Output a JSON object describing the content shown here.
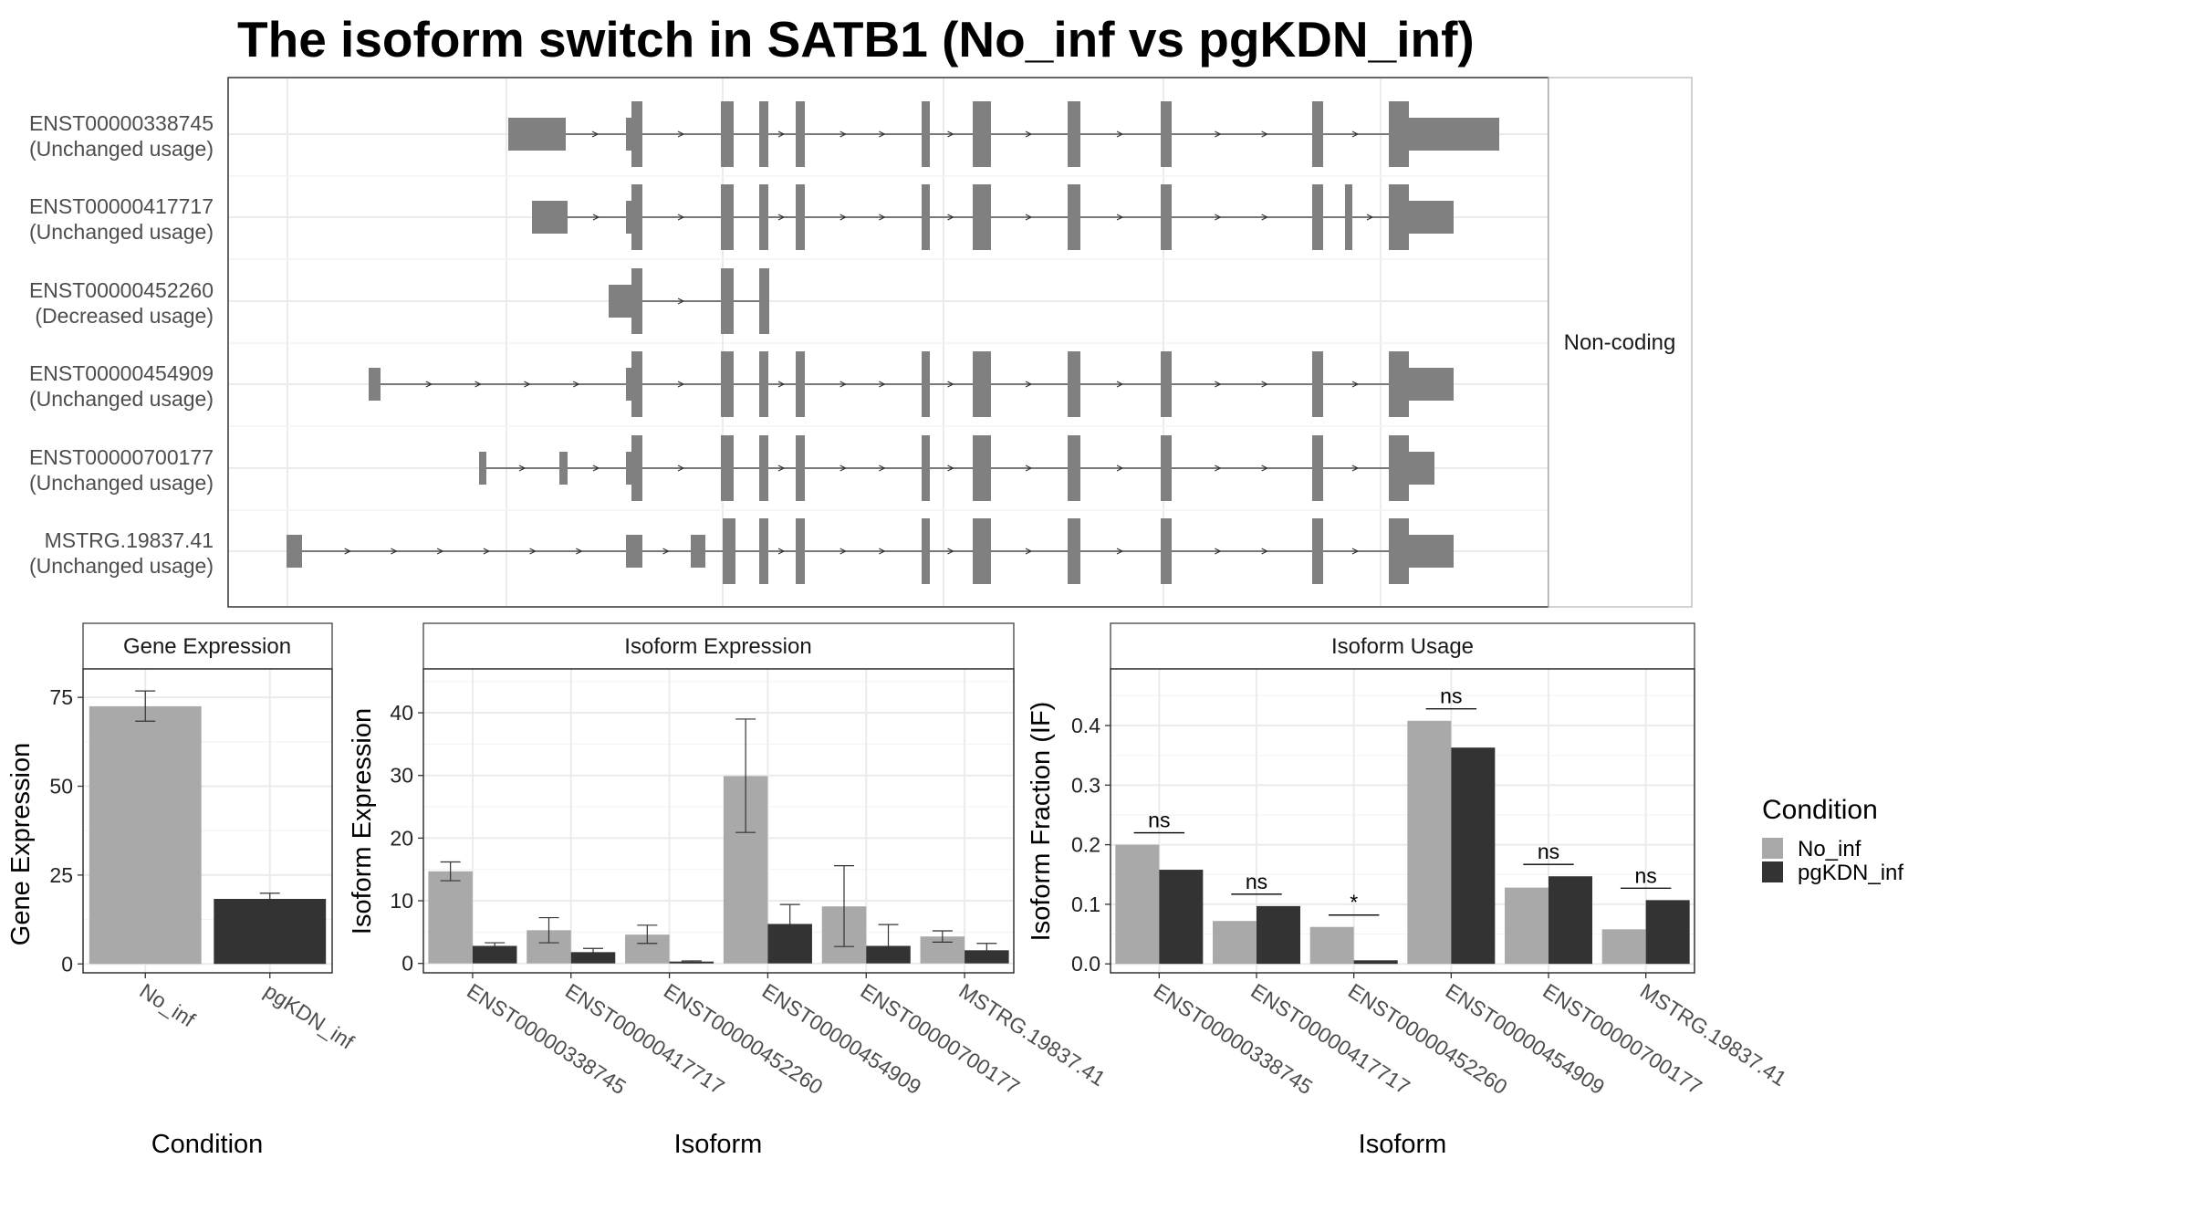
{
  "title": "The isoform switch in SATB1 (No_inf vs pgKDN_inf)",
  "colors": {
    "No_inf": "#a9a9a9",
    "pgKDN_inf": "#333333",
    "exon": "#808080",
    "grid": "#ebebeb",
    "strip_bg": "#ffffff"
  },
  "structure_panel": {
    "side_label": "Non-coding",
    "isoforms": [
      {
        "id": "ENST00000338745",
        "usage": "(Unchanged usage)"
      },
      {
        "id": "ENST00000417717",
        "usage": "(Unchanged usage)"
      },
      {
        "id": "ENST00000452260",
        "usage": "(Decreased usage)"
      },
      {
        "id": "ENST00000454909",
        "usage": "(Unchanged usage)"
      },
      {
        "id": "ENST00000700177",
        "usage": "(Unchanged usage)"
      },
      {
        "id": "MSTRG.19837.41",
        "usage": "(Unchanged usage)"
      }
    ]
  },
  "legend": {
    "title": "Condition",
    "items": [
      "No_inf",
      "pgKDN_inf"
    ]
  },
  "chart_data": [
    {
      "type": "bar",
      "strip": "Gene Expression",
      "xlabel": "Condition",
      "ylabel": "Gene Expression",
      "categories": [
        "No_inf",
        "pgKDN_inf"
      ],
      "values": [
        72.5,
        18.3
      ],
      "errors": [
        [
          68.3,
          76.8
        ],
        [
          16.9,
          19.9
        ]
      ],
      "ylim": [
        -2.5,
        83
      ],
      "yticks": [
        0,
        25,
        50,
        75
      ]
    },
    {
      "type": "bar",
      "strip": "Isoform Expression",
      "xlabel": "Isoform",
      "ylabel": "Isoform Expression",
      "categories": [
        "ENST00000338745",
        "ENST00000417717",
        "ENST00000452260",
        "ENST00000454909",
        "ENST00000700177",
        "MSTRG.19837.41"
      ],
      "series": [
        {
          "name": "No_inf",
          "values": [
            14.7,
            5.3,
            4.6,
            29.9,
            9.1,
            4.3
          ],
          "errors": [
            [
              13.2,
              16.2
            ],
            [
              3.3,
              7.3
            ],
            [
              3.2,
              6.1
            ],
            [
              20.9,
              39.0
            ],
            [
              2.7,
              15.6
            ],
            [
              3.4,
              5.2
            ]
          ]
        },
        {
          "name": "pgKDN_inf",
          "values": [
            2.8,
            1.8,
            0.3,
            6.3,
            2.8,
            2.1
          ],
          "errors": [
            [
              2.4,
              3.3
            ],
            [
              1.3,
              2.4
            ],
            [
              0.1,
              0.4
            ],
            [
              3.3,
              9.4
            ],
            [
              0.4,
              6.2
            ],
            [
              1.1,
              3.2
            ]
          ]
        }
      ],
      "ylim": [
        -1.5,
        47
      ],
      "yticks": [
        0,
        10,
        20,
        30,
        40
      ]
    },
    {
      "type": "bar",
      "strip": "Isoform Usage",
      "xlabel": "Isoform",
      "ylabel": "Isoform Fraction (IF)",
      "categories": [
        "ENST00000338745",
        "ENST00000417717",
        "ENST00000452260",
        "ENST00000454909",
        "ENST00000700177",
        "MSTRG.19837.41"
      ],
      "series": [
        {
          "name": "No_inf",
          "values": [
            0.2,
            0.072,
            0.062,
            0.408,
            0.128,
            0.058
          ]
        },
        {
          "name": "pgKDN_inf",
          "values": [
            0.158,
            0.097,
            0.006,
            0.363,
            0.147,
            0.107
          ]
        }
      ],
      "significance": [
        "ns",
        "ns",
        "*",
        "ns",
        "ns",
        "ns"
      ],
      "ylim": [
        -0.015,
        0.495
      ],
      "yticks": [
        "0.0",
        "0.1",
        "0.2",
        "0.3",
        "0.4"
      ]
    }
  ]
}
